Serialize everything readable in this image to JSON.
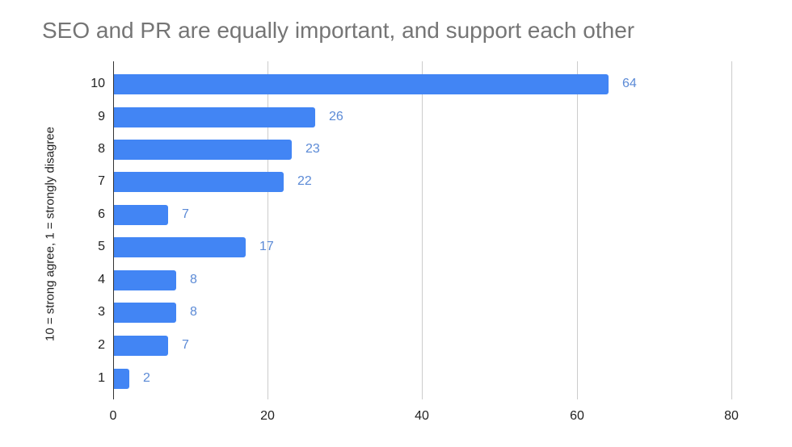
{
  "chart_data": {
    "type": "bar",
    "orientation": "horizontal",
    "title": "SEO and PR are equally important, and support each other",
    "xlabel": "",
    "ylabel": "10 = strong agree, 1 = strongly disagree",
    "categories": [
      "10",
      "9",
      "8",
      "7",
      "6",
      "5",
      "4",
      "3",
      "2",
      "1"
    ],
    "values": [
      64,
      26,
      23,
      22,
      7,
      17,
      8,
      8,
      7,
      2
    ],
    "xlim": [
      0,
      80
    ],
    "xticks": [
      "0",
      "20",
      "40",
      "60",
      "80"
    ],
    "grid": true,
    "legend": "none",
    "bar_color": "#4285f4",
    "label_color": "#5b8ad6"
  }
}
